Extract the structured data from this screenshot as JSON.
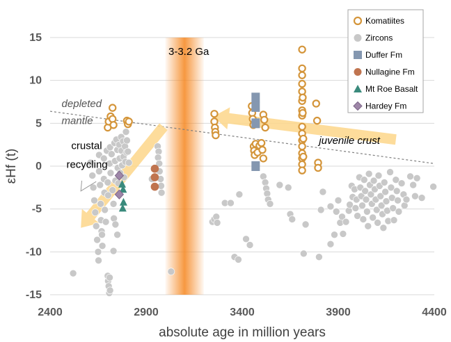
{
  "chart_data": {
    "type": "scatter",
    "xlabel": "absolute age in million years",
    "ylabel": "εHf (t)",
    "xlim": [
      2400,
      4400
    ],
    "ylim": [
      -15,
      15
    ],
    "xticks": [
      2400,
      2900,
      3400,
      3900,
      4400
    ],
    "yticks": [
      15,
      10,
      5,
      0,
      -5,
      -10,
      -15
    ],
    "grid": "horizontal",
    "legend_position": "top-right",
    "band": {
      "label": "3-3.2 Ga",
      "x_range": [
        3000,
        3200
      ],
      "color": "#f5861f"
    },
    "depleted_mantle": {
      "label_line1": "depleted",
      "label_line2": "mantle",
      "points": [
        [
          2400,
          6.4
        ],
        [
          4400,
          0.3
        ]
      ]
    },
    "arrows": [
      {
        "label": "juvenile crust",
        "from": [
          4200,
          3.1
        ],
        "to": [
          3250,
          5.8
        ]
      },
      {
        "label_line1": "crustal",
        "label_line2": "recycling",
        "from": [
          2990,
          4.6
        ],
        "to": [
          2560,
          -7.2
        ]
      }
    ],
    "series": [
      {
        "name": "Komatiites",
        "marker": "open-circle",
        "color": "#d4953a",
        "points": [
          [
            2700,
            4.5
          ],
          [
            2705,
            5.2
          ],
          [
            2715,
            5.8
          ],
          [
            2725,
            6.8
          ],
          [
            2725,
            5.5
          ],
          [
            2730,
            4.8
          ],
          [
            2800,
            5.3
          ],
          [
            2805,
            4.9
          ],
          [
            2810,
            5.2
          ],
          [
            3255,
            6.1
          ],
          [
            3255,
            5.2
          ],
          [
            3258,
            4.5
          ],
          [
            3260,
            4.0
          ],
          [
            3262,
            3.6
          ],
          [
            3450,
            7.0
          ],
          [
            3452,
            6.2
          ],
          [
            3455,
            5.5
          ],
          [
            3458,
            4.8
          ],
          [
            3460,
            2.3
          ],
          [
            3462,
            1.8
          ],
          [
            3465,
            1.3
          ],
          [
            3470,
            2.6
          ],
          [
            3480,
            1.6
          ],
          [
            3490,
            2.4
          ],
          [
            3500,
            2.7
          ],
          [
            3505,
            1.9
          ],
          [
            3510,
            0.9
          ],
          [
            3510,
            6.0
          ],
          [
            3515,
            5.4
          ],
          [
            3520,
            4.5
          ],
          [
            3712,
            13.6
          ],
          [
            3712,
            11.4
          ],
          [
            3712,
            10.6
          ],
          [
            3712,
            9.6
          ],
          [
            3712,
            8.7
          ],
          [
            3712,
            7.6
          ],
          [
            3712,
            6.5
          ],
          [
            3712,
            5.9
          ],
          [
            3712,
            4.6
          ],
          [
            3712,
            3.8
          ],
          [
            3712,
            3.0
          ],
          [
            3712,
            2.3
          ],
          [
            3712,
            1.5
          ],
          [
            3712,
            0.9
          ],
          [
            3712,
            0.2
          ],
          [
            3712,
            -0.5
          ],
          [
            3715,
            8.0
          ],
          [
            3715,
            6.2
          ],
          [
            3718,
            3.2
          ],
          [
            3718,
            1.1
          ],
          [
            3785,
            7.3
          ],
          [
            3790,
            5.3
          ],
          [
            3795,
            0.4
          ],
          [
            3795,
            -0.2
          ]
        ]
      },
      {
        "name": "Zircons",
        "marker": "filled-circle",
        "color": "#c8c8c8",
        "points": [
          [
            2520,
            -12.5
          ],
          [
            2610,
            0.4
          ],
          [
            2620,
            -1.1
          ],
          [
            2625,
            -2.5
          ],
          [
            2630,
            -4.0
          ],
          [
            2635,
            -5.4
          ],
          [
            2640,
            -7.0
          ],
          [
            2645,
            -8.6
          ],
          [
            2650,
            -10.0
          ],
          [
            2652,
            -11.0
          ],
          [
            2655,
            1.3
          ],
          [
            2655,
            -0.6
          ],
          [
            2660,
            -2.2
          ],
          [
            2663,
            -4.4
          ],
          [
            2665,
            -6.3
          ],
          [
            2668,
            -7.6
          ],
          [
            2670,
            -8.0
          ],
          [
            2672,
            -9.3
          ],
          [
            2680,
            0.9
          ],
          [
            2680,
            -1.5
          ],
          [
            2683,
            -3.1
          ],
          [
            2685,
            -5.1
          ],
          [
            2690,
            -6.5
          ],
          [
            2695,
            1.8
          ],
          [
            2700,
            -1.9
          ],
          [
            2702,
            -3.4
          ],
          [
            2710,
            0.3
          ],
          [
            2712,
            2.2
          ],
          [
            2715,
            -0.8
          ],
          [
            2720,
            1.4
          ],
          [
            2725,
            -2.8
          ],
          [
            2730,
            -4.4
          ],
          [
            2732,
            -6.1
          ],
          [
            2735,
            2.7
          ],
          [
            2738,
            0.6
          ],
          [
            2740,
            -1.7
          ],
          [
            2745,
            3.1
          ],
          [
            2750,
            1.9
          ],
          [
            2752,
            -0.2
          ],
          [
            2755,
            -2.0
          ],
          [
            2760,
            2.5
          ],
          [
            2762,
            0.9
          ],
          [
            2765,
            -0.8
          ],
          [
            2770,
            3.4
          ],
          [
            2772,
            1.8
          ],
          [
            2775,
            0.1
          ],
          [
            2780,
            2.9
          ],
          [
            2782,
            1.1
          ],
          [
            2785,
            -1.3
          ],
          [
            2790,
            2.3
          ],
          [
            2792,
            0.5
          ],
          [
            2795,
            4.0
          ],
          [
            2798,
            1.6
          ],
          [
            2800,
            3.0
          ],
          [
            2805,
            1.7
          ],
          [
            2810,
            0.4
          ],
          [
            2700,
            -12.8
          ],
          [
            2702,
            -13.4
          ],
          [
            2705,
            -14.0
          ],
          [
            2708,
            -14.8
          ],
          [
            2710,
            -13.0
          ],
          [
            2712,
            -14.5
          ],
          [
            2730,
            -9.9
          ],
          [
            2740,
            -6.8
          ],
          [
            2750,
            -8.0
          ],
          [
            2930,
            -1.5
          ],
          [
            2960,
            2.3
          ],
          [
            2965,
            1.7
          ],
          [
            2962,
            1.0
          ],
          [
            2968,
            0.3
          ],
          [
            2970,
            -0.6
          ],
          [
            2975,
            -1.5
          ],
          [
            2978,
            -2.3
          ],
          [
            2980,
            -3.1
          ],
          [
            3030,
            -12.3
          ],
          [
            3245,
            -6.5
          ],
          [
            3255,
            -6.2
          ],
          [
            3265,
            -5.9
          ],
          [
            3270,
            -6.6
          ],
          [
            3310,
            -4.3
          ],
          [
            3340,
            -4.3
          ],
          [
            3360,
            -10.6
          ],
          [
            3380,
            -10.9
          ],
          [
            3385,
            -3.3
          ],
          [
            3420,
            -8.5
          ],
          [
            3440,
            -9.2
          ],
          [
            3510,
            -1.2
          ],
          [
            3520,
            -1.9
          ],
          [
            3525,
            -2.6
          ],
          [
            3530,
            -3.2
          ],
          [
            3535,
            -3.9
          ],
          [
            3545,
            -4.4
          ],
          [
            3595,
            -2.2
          ],
          [
            3640,
            -2.5
          ],
          [
            3650,
            -5.6
          ],
          [
            3660,
            -6.2
          ],
          [
            3720,
            -10.2
          ],
          [
            3730,
            -6.8
          ],
          [
            3800,
            -10.6
          ],
          [
            3810,
            -5.1
          ],
          [
            3820,
            -3.0
          ],
          [
            3860,
            -4.7
          ],
          [
            3860,
            -9.1
          ],
          [
            3880,
            -8.0
          ],
          [
            3890,
            -5.3
          ],
          [
            3900,
            -4.0
          ],
          [
            3910,
            -6.6
          ],
          [
            3920,
            -5.9
          ],
          [
            3925,
            -7.9
          ],
          [
            3940,
            -6.5
          ],
          [
            3955,
            -5.2
          ],
          [
            3960,
            -4.5
          ],
          [
            3970,
            -2.3
          ],
          [
            3975,
            -3.6
          ],
          [
            3985,
            -2.7
          ],
          [
            3990,
            -4.9
          ],
          [
            3995,
            -3.9
          ],
          [
            4000,
            -5.8
          ],
          [
            4010,
            -1.3
          ],
          [
            4015,
            -2.5
          ],
          [
            4020,
            -3.5
          ],
          [
            4025,
            -4.6
          ],
          [
            4030,
            -6.2
          ],
          [
            4035,
            -1.6
          ],
          [
            4040,
            -2.9
          ],
          [
            4045,
            -3.9
          ],
          [
            4050,
            -5.3
          ],
          [
            4055,
            -7.0
          ],
          [
            4060,
            -0.9
          ],
          [
            4065,
            -2.2
          ],
          [
            4070,
            -3.3
          ],
          [
            4075,
            -4.4
          ],
          [
            4080,
            -6.0
          ],
          [
            4085,
            -1.7
          ],
          [
            4090,
            -2.7
          ],
          [
            4095,
            -3.9
          ],
          [
            4100,
            -5.1
          ],
          [
            4105,
            -6.6
          ],
          [
            4110,
            -1.1
          ],
          [
            4115,
            -2.3
          ],
          [
            4120,
            -3.5
          ],
          [
            4125,
            -4.6
          ],
          [
            4130,
            -5.6
          ],
          [
            4135,
            -7.2
          ],
          [
            4140,
            -1.9
          ],
          [
            4145,
            -3.0
          ],
          [
            4150,
            -4.1
          ],
          [
            4155,
            -5.2
          ],
          [
            4160,
            -6.4
          ],
          [
            4170,
            -0.7
          ],
          [
            4175,
            -2.5
          ],
          [
            4180,
            -3.7
          ],
          [
            4185,
            -4.9
          ],
          [
            4190,
            -6.3
          ],
          [
            4200,
            -1.6
          ],
          [
            4205,
            -2.9
          ],
          [
            4210,
            -4.0
          ],
          [
            4215,
            -5.3
          ],
          [
            4230,
            -2.0
          ],
          [
            4240,
            -3.3
          ],
          [
            4245,
            -4.6
          ],
          [
            4255,
            -3.9
          ],
          [
            4275,
            -1.2
          ],
          [
            4290,
            -2.2
          ],
          [
            4300,
            -3.5
          ],
          [
            4310,
            -1.4
          ],
          [
            4335,
            -3.7
          ],
          [
            4395,
            -2.4
          ]
        ]
      },
      {
        "name": "Duffer Fm",
        "marker": "square",
        "color": "#8497b0",
        "points": [
          [
            3470,
            8.0
          ],
          [
            3470,
            6.9
          ],
          [
            3470,
            5.0
          ],
          [
            3470,
            0.0
          ]
        ]
      },
      {
        "name": "Nullagine Fm",
        "marker": "filled-circle",
        "color": "#c0744f",
        "points": [
          [
            2945,
            -0.3
          ],
          [
            2945,
            -1.3
          ],
          [
            2945,
            -2.4
          ]
        ]
      },
      {
        "name": "Mt Roe Basalt",
        "marker": "triangle",
        "color": "#3a8a7c",
        "points": [
          [
            2775,
            -2.1
          ],
          [
            2780,
            -2.7
          ],
          [
            2782,
            -4.2
          ],
          [
            2778,
            -4.9
          ]
        ]
      },
      {
        "name": "Hardey Fm",
        "marker": "diamond",
        "color": "#9e86a8",
        "points": [
          [
            2760,
            -1.1
          ],
          [
            2760,
            -3.3
          ]
        ]
      }
    ]
  }
}
